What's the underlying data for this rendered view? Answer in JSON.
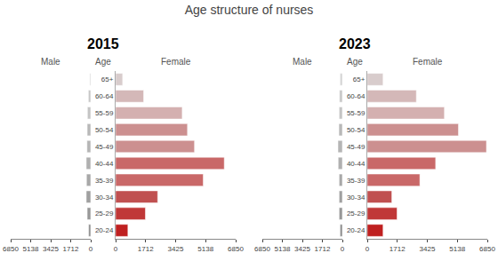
{
  "title": "Age structure of nurses",
  "chart_data": [
    {
      "type": "bar",
      "orientation": "horizontal",
      "title": "2015",
      "ylabel": "Age",
      "categories": [
        "65+",
        "60-64",
        "55-59",
        "50-54",
        "45-49",
        "40-44",
        "35-39",
        "30-34",
        "25-29",
        "20-24"
      ],
      "series": [
        {
          "name": "Male",
          "colors": [
            "#d5d5d5",
            "#c8c8c8",
            "#c5c5c5",
            "#b8b8b8",
            "#b5b5b5",
            "#b0b0b0",
            "#a8a8a8",
            "#a0a0a0",
            "#989898",
            "#909090"
          ],
          "values": [
            80,
            200,
            280,
            300,
            320,
            380,
            360,
            380,
            300,
            180
          ]
        },
        {
          "name": "Female",
          "colors": [
            "#d8cccc",
            "#d4b8b8",
            "#d4b0b0",
            "#cc9090",
            "#cc9090",
            "#c96868",
            "#c96868",
            "#c05050",
            "#c03838",
            "#bf2020"
          ],
          "values": [
            400,
            1600,
            3800,
            4100,
            4500,
            6200,
            5000,
            2400,
            1700,
            700
          ]
        }
      ],
      "xlim": [
        0,
        6850
      ],
      "xticks": [
        0,
        1712,
        3425,
        5138,
        6850
      ],
      "grid": false
    },
    {
      "type": "bar",
      "orientation": "horizontal",
      "title": "2023",
      "ylabel": "Age",
      "categories": [
        "65+",
        "60-64",
        "55-59",
        "50-54",
        "45-49",
        "40-44",
        "35-39",
        "30-34",
        "25-29",
        "20-24"
      ],
      "series": [
        {
          "name": "Male",
          "colors": [
            "#d5d5d5",
            "#c8c8c8",
            "#c5c5c5",
            "#b8b8b8",
            "#b5b5b5",
            "#b0b0b0",
            "#a8a8a8",
            "#a0a0a0",
            "#989898",
            "#909090"
          ],
          "values": [
            200,
            250,
            280,
            300,
            380,
            360,
            280,
            280,
            280,
            200
          ]
        },
        {
          "name": "Female",
          "colors": [
            "#d8cccc",
            "#d4b8b8",
            "#d4b0b0",
            "#cc9090",
            "#cc9090",
            "#c96868",
            "#c96868",
            "#c05050",
            "#c03838",
            "#bf2020"
          ],
          "values": [
            900,
            2800,
            4400,
            5200,
            6800,
            3900,
            3000,
            1400,
            1700,
            900
          ]
        }
      ],
      "xlim": [
        0,
        6850
      ],
      "xticks": [
        0,
        1712,
        3425,
        5138,
        6850
      ],
      "grid": false
    }
  ]
}
